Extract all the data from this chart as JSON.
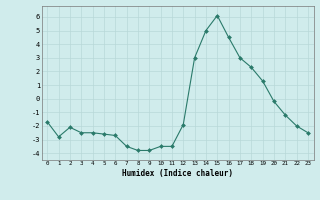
{
  "x": [
    0,
    1,
    2,
    3,
    4,
    5,
    6,
    7,
    8,
    9,
    10,
    11,
    12,
    13,
    14,
    15,
    16,
    17,
    18,
    19,
    20,
    21,
    22,
    23
  ],
  "y": [
    -1.7,
    -2.8,
    -2.1,
    -2.5,
    -2.5,
    -2.6,
    -2.7,
    -3.5,
    -3.8,
    -3.8,
    -3.5,
    -3.5,
    -1.9,
    3.0,
    5.0,
    6.1,
    4.5,
    3.0,
    2.3,
    1.3,
    -0.2,
    -1.2,
    -2.0,
    -2.5
  ],
  "line_color": "#2a7a6a",
  "marker": "D",
  "marker_size": 2.0,
  "xlabel": "Humidex (Indice chaleur)",
  "ylim": [
    -4.5,
    6.8
  ],
  "xlim": [
    -0.5,
    23.5
  ],
  "yticks": [
    -4,
    -3,
    -2,
    -1,
    0,
    1,
    2,
    3,
    4,
    5,
    6
  ],
  "xticks": [
    0,
    1,
    2,
    3,
    4,
    5,
    6,
    7,
    8,
    9,
    10,
    11,
    12,
    13,
    14,
    15,
    16,
    17,
    18,
    19,
    20,
    21,
    22,
    23
  ],
  "bg_color": "#d0ecec",
  "grid_color": "#b8d8d8"
}
